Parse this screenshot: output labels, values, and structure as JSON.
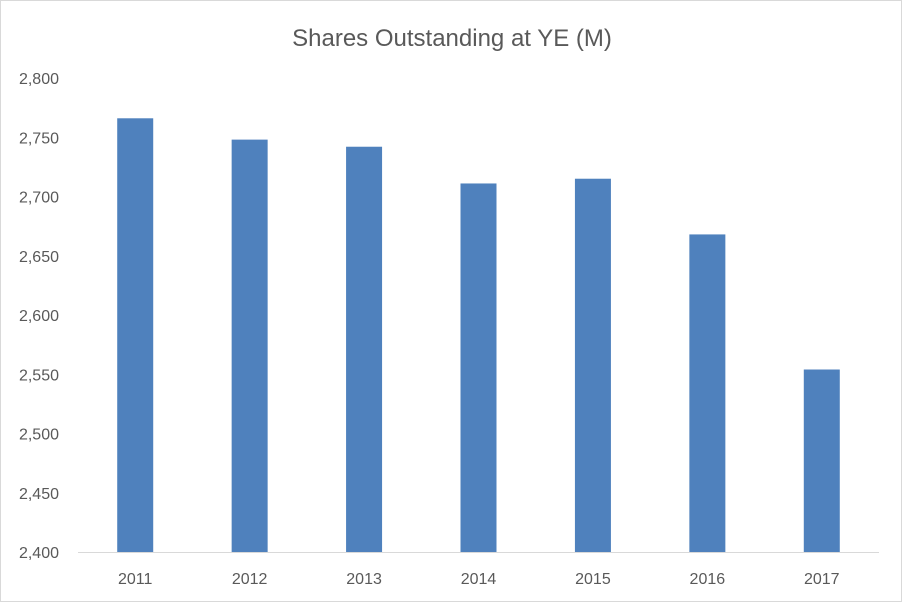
{
  "chart_data": {
    "type": "bar",
    "title": "Shares Outstanding at YE (M)",
    "xlabel": "",
    "ylabel": "",
    "categories": [
      "2011",
      "2012",
      "2013",
      "2014",
      "2015",
      "2016",
      "2017"
    ],
    "values": [
      2766,
      2748,
      2742,
      2711,
      2715,
      2668,
      2554
    ],
    "ylim": [
      2400,
      2800
    ],
    "yticks": [
      2400,
      2450,
      2500,
      2550,
      2600,
      2650,
      2700,
      2750,
      2800
    ],
    "ytick_labels": [
      "2,400",
      "2,450",
      "2,500",
      "2,550",
      "2,600",
      "2,650",
      "2,700",
      "2,750",
      "2,800"
    ],
    "grid": false,
    "legend": "none",
    "colors": {
      "bar": "#4f81bd",
      "axis": "#d9d9d9",
      "text": "#595959"
    }
  }
}
